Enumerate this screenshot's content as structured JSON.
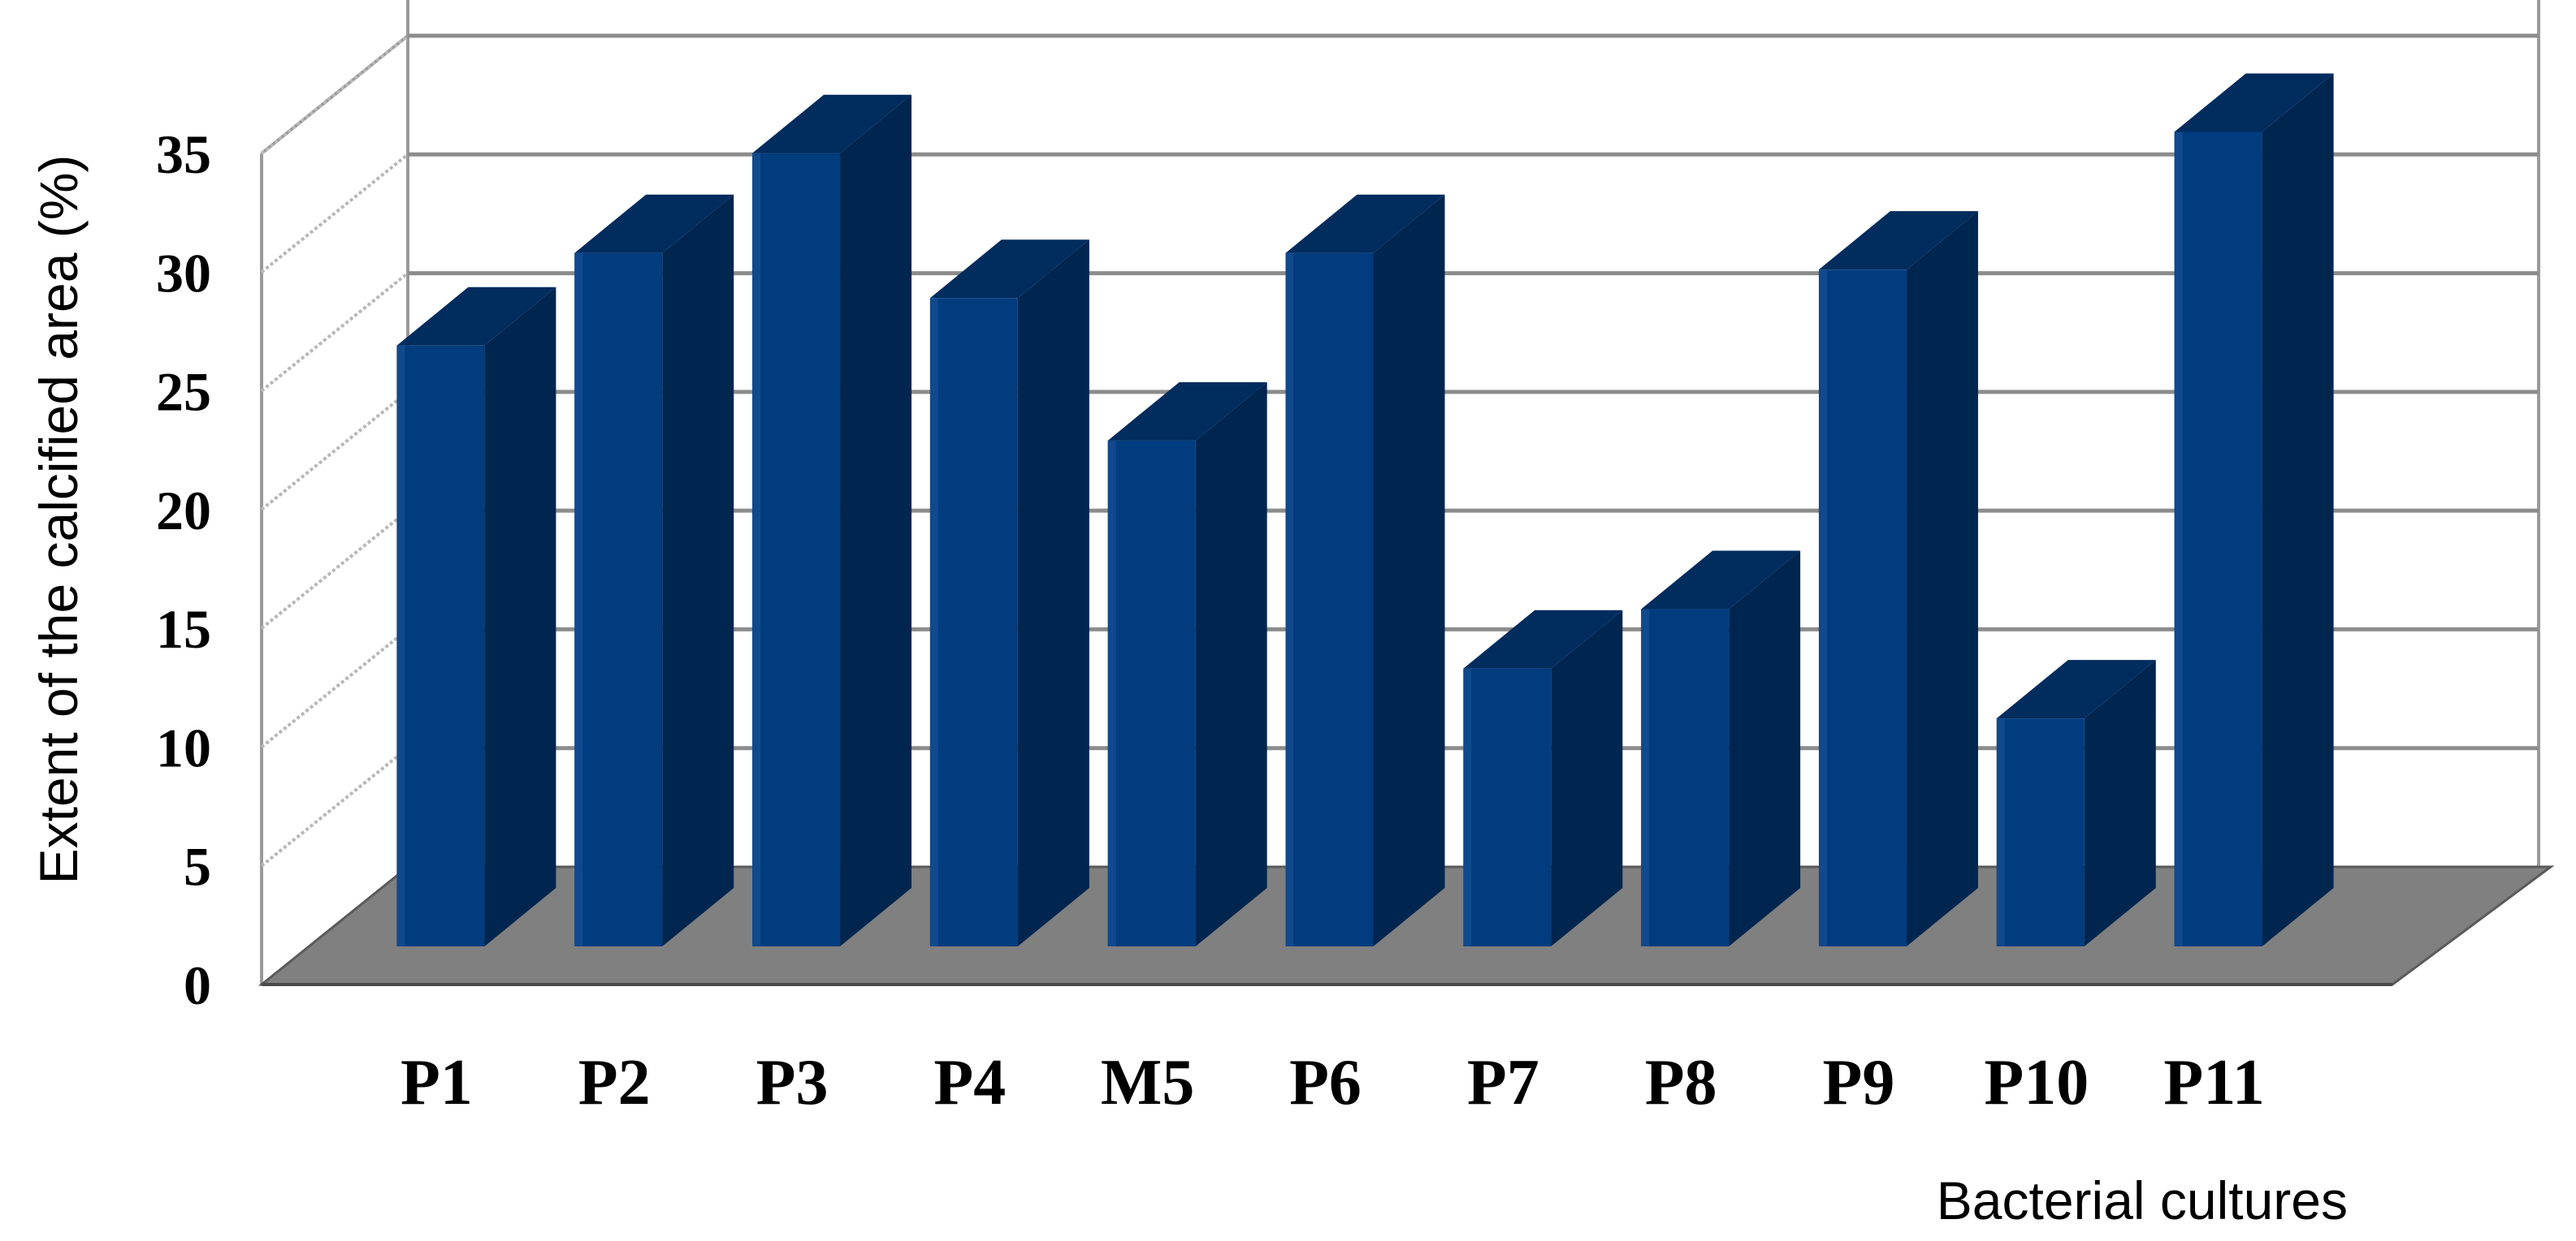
{
  "chart_data": {
    "type": "bar",
    "style": "3d-column",
    "categories": [
      "P1",
      "P2",
      "P3",
      "P4",
      "M5",
      "P6",
      "P7",
      "P8",
      "P9",
      "P10",
      "P11"
    ],
    "series": [
      {
        "values": [
          25.3,
          29.2,
          33.4,
          27.3,
          21.3,
          29.2,
          11.7,
          14.2,
          28.5,
          9.6,
          34.3
        ]
      }
    ],
    "yticks": [
      0,
      5,
      10,
      15,
      20,
      25,
      30,
      35
    ],
    "ylim": [
      0,
      35
    ],
    "xlabel": "Bacterial cultures",
    "ylabel": "Extent of the calcified area (%)",
    "grid": true,
    "legend": "none",
    "colors": {
      "bar_front": "#003c7e",
      "bar_side": "#00254f",
      "bar_top": "#002c5e",
      "floor": "#808080",
      "gridline": "#8c8c8c"
    }
  }
}
